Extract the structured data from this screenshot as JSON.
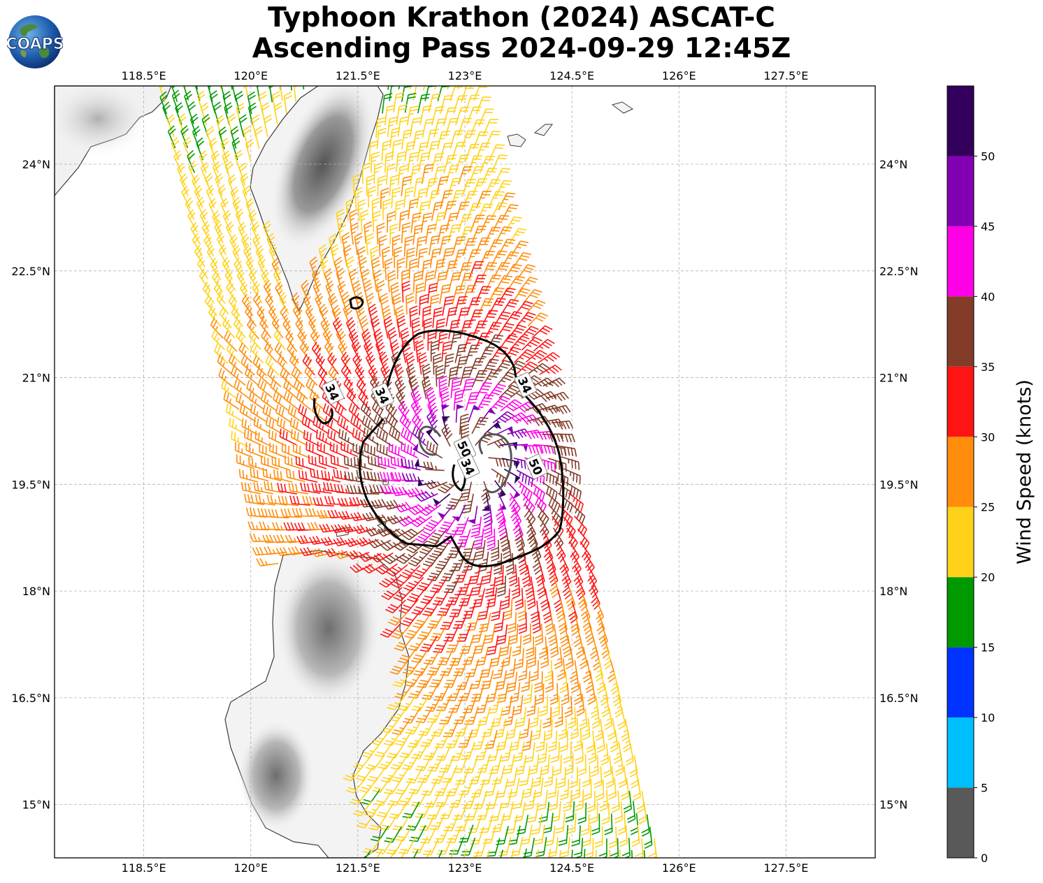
{
  "title": {
    "line1": "Typhoon Krathon (2024) ASCAT-C",
    "line2": "Ascending Pass 2024-09-29 12:45Z"
  },
  "logo": {
    "text": "COAPS",
    "icon": "globe-logo"
  },
  "colors": {
    "land_bg": "#f2f2f2",
    "grid": "#b0b0b0",
    "contour": "#000000",
    "contour_inner": "#555555"
  },
  "chart_data": {
    "type": "scatter",
    "subtype": "wind-barb-map",
    "xlim": [
      117.25,
      128.75
    ],
    "ylim": [
      14.25,
      25.1
    ],
    "x_ticks": [
      {
        "value": 118.5,
        "label": "118.5°E"
      },
      {
        "value": 120.0,
        "label": "120°E"
      },
      {
        "value": 121.5,
        "label": "121.5°E"
      },
      {
        "value": 123.0,
        "label": "123°E"
      },
      {
        "value": 124.5,
        "label": "124.5°E"
      },
      {
        "value": 126.0,
        "label": "126°E"
      },
      {
        "value": 127.5,
        "label": "127.5°E"
      }
    ],
    "y_ticks": [
      {
        "value": 24.0,
        "label": "24°N"
      },
      {
        "value": 22.5,
        "label": "22.5°N"
      },
      {
        "value": 21.0,
        "label": "21°N"
      },
      {
        "value": 19.5,
        "label": "19.5°N"
      },
      {
        "value": 18.0,
        "label": "18°N"
      },
      {
        "value": 16.5,
        "label": "16.5°N"
      },
      {
        "value": 15.0,
        "label": "15°N"
      }
    ],
    "grid": true,
    "storm_center": {
      "lon": 123.05,
      "lat": 19.8
    },
    "contour_labels": [
      {
        "text": "34",
        "lon": 121.15,
        "lat": 20.8
      },
      {
        "text": "34",
        "lon": 121.85,
        "lat": 20.75
      },
      {
        "text": "34",
        "lon": 123.85,
        "lat": 20.9
      },
      {
        "text": "50",
        "lon": 123.0,
        "lat": 20.0
      },
      {
        "text": "34",
        "lon": 123.05,
        "lat": 19.75
      },
      {
        "text": "50",
        "lon": 124.0,
        "lat": 19.75
      }
    ],
    "colorbar": {
      "label": "Wind Speed (knots)",
      "bounds": [
        0,
        5,
        10,
        15,
        20,
        25,
        30,
        35,
        40,
        45,
        50,
        55
      ],
      "tick_labels": [
        "0",
        "5",
        "10",
        "15",
        "20",
        "25",
        "30",
        "35",
        "40",
        "45",
        "50"
      ],
      "colors": [
        "#595959",
        "#00bfff",
        "#0033ff",
        "#009900",
        "#ffd21a",
        "#ff8c0a",
        "#ff1414",
        "#823c28",
        "#ff00e6",
        "#8200b4",
        "#32005a"
      ]
    }
  }
}
